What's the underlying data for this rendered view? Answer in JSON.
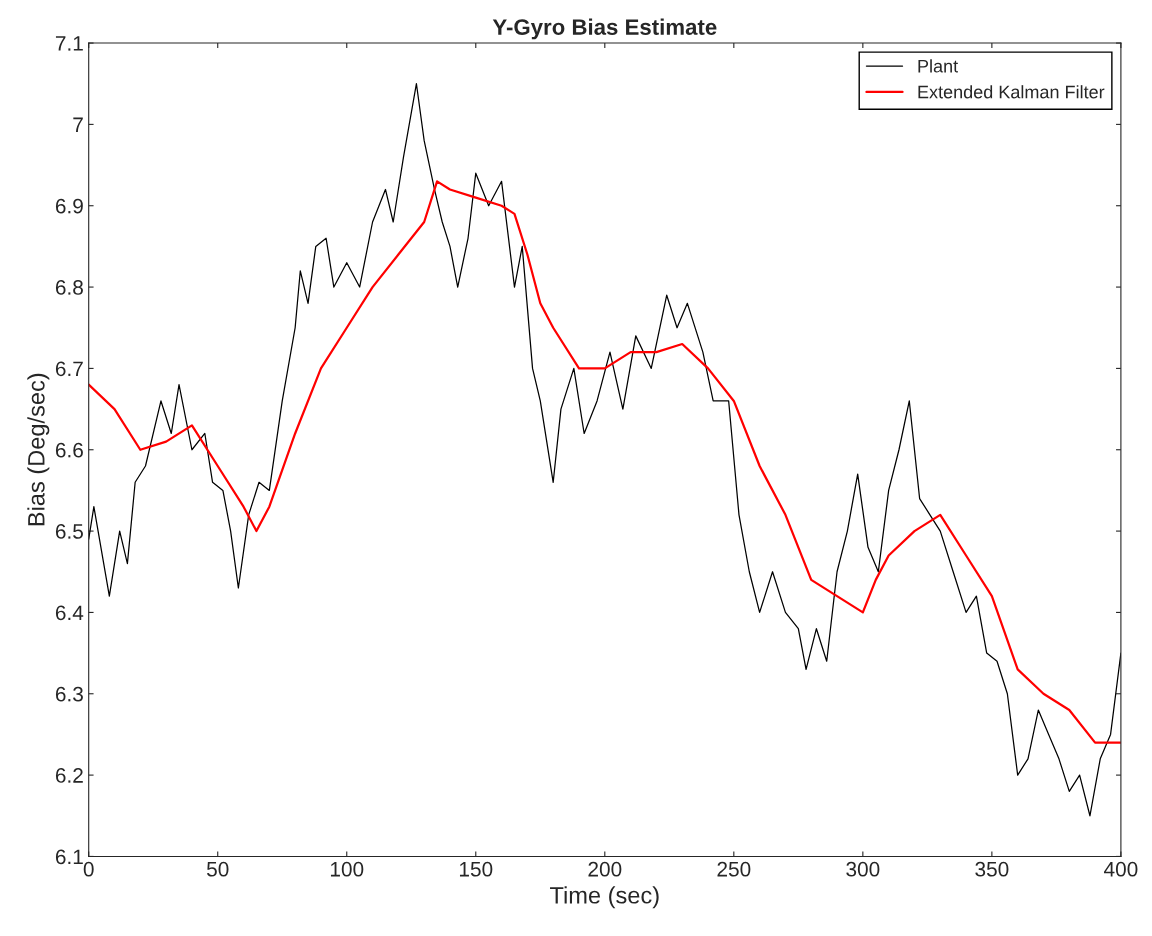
{
  "chart_data": {
    "type": "line",
    "title": "Y-Gyro Bias Estimate",
    "xlabel": "Time (sec)",
    "ylabel": "Bias (Deg/sec)",
    "xlim": [
      0,
      400
    ],
    "xticks": [
      0,
      50,
      100,
      150,
      200,
      250,
      300,
      350,
      400
    ],
    "ylim": [
      6.1,
      7.1
    ],
    "yticks": [
      6.1,
      6.2,
      6.3,
      6.4,
      6.5,
      6.6,
      6.7,
      6.8,
      6.9,
      7,
      7.1
    ],
    "grid": false,
    "legend": "top right",
    "series": [
      {
        "name": "Plant",
        "color": "#000000",
        "x": [
          0,
          2,
          8,
          12,
          15,
          18,
          22,
          28,
          32,
          35,
          40,
          45,
          48,
          52,
          55,
          58,
          62,
          66,
          70,
          75,
          80,
          82,
          85,
          88,
          92,
          95,
          100,
          105,
          110,
          115,
          118,
          122,
          127,
          130,
          134,
          137,
          140,
          143,
          147,
          150,
          155,
          160,
          165,
          168,
          172,
          175,
          180,
          183,
          188,
          192,
          197,
          202,
          207,
          212,
          218,
          224,
          228,
          232,
          238,
          242,
          248,
          252,
          256,
          260,
          265,
          270,
          275,
          278,
          282,
          286,
          290,
          294,
          298,
          302,
          306,
          310,
          314,
          318,
          322,
          326,
          330,
          335,
          340,
          344,
          348,
          352,
          356,
          360,
          364,
          368,
          372,
          376,
          380,
          384,
          388,
          392,
          396,
          400
        ],
        "values": [
          6.49,
          6.53,
          6.42,
          6.5,
          6.46,
          6.56,
          6.58,
          6.66,
          6.62,
          6.68,
          6.6,
          6.62,
          6.56,
          6.55,
          6.5,
          6.43,
          6.52,
          6.56,
          6.55,
          6.66,
          6.75,
          6.82,
          6.78,
          6.85,
          6.86,
          6.8,
          6.83,
          6.8,
          6.88,
          6.92,
          6.88,
          6.96,
          7.05,
          6.98,
          6.92,
          6.88,
          6.85,
          6.8,
          6.86,
          6.94,
          6.9,
          6.93,
          6.8,
          6.85,
          6.7,
          6.66,
          6.56,
          6.65,
          6.7,
          6.62,
          6.66,
          6.72,
          6.65,
          6.74,
          6.7,
          6.79,
          6.75,
          6.78,
          6.72,
          6.66,
          6.66,
          6.52,
          6.45,
          6.4,
          6.45,
          6.4,
          6.38,
          6.33,
          6.38,
          6.34,
          6.45,
          6.5,
          6.57,
          6.48,
          6.45,
          6.55,
          6.6,
          6.66,
          6.54,
          6.52,
          6.5,
          6.45,
          6.4,
          6.42,
          6.35,
          6.34,
          6.3,
          6.2,
          6.22,
          6.28,
          6.25,
          6.22,
          6.18,
          6.2,
          6.15,
          6.22,
          6.25,
          6.35
        ]
      },
      {
        "name": "Extended Kalman Filter",
        "color": "#ff0000",
        "x": [
          0,
          10,
          20,
          30,
          40,
          50,
          60,
          65,
          70,
          80,
          90,
          100,
          110,
          120,
          130,
          135,
          140,
          150,
          160,
          165,
          170,
          175,
          180,
          190,
          200,
          210,
          220,
          230,
          240,
          250,
          260,
          270,
          280,
          290,
          300,
          305,
          310,
          320,
          330,
          340,
          350,
          360,
          370,
          380,
          390,
          400
        ],
        "values": [
          6.68,
          6.65,
          6.6,
          6.61,
          6.63,
          6.58,
          6.53,
          6.5,
          6.53,
          6.62,
          6.7,
          6.75,
          6.8,
          6.84,
          6.88,
          6.93,
          6.92,
          6.91,
          6.9,
          6.89,
          6.84,
          6.78,
          6.75,
          6.7,
          6.7,
          6.72,
          6.72,
          6.73,
          6.7,
          6.66,
          6.58,
          6.52,
          6.44,
          6.42,
          6.4,
          6.44,
          6.47,
          6.5,
          6.52,
          6.47,
          6.42,
          6.33,
          6.3,
          6.28,
          6.24,
          6.24
        ]
      }
    ]
  }
}
